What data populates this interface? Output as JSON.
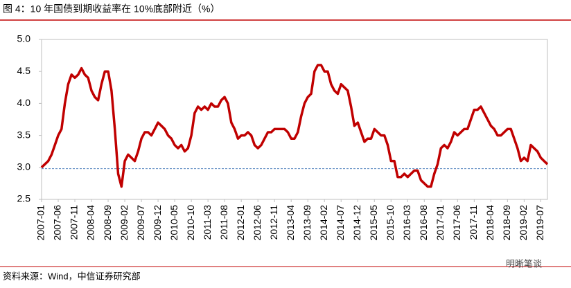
{
  "chart_data": {
    "type": "line",
    "title": "图 4：10 年国债到期收益率在 10%底部附近（%）",
    "source": "资料来源：Wind，中信证券研究部",
    "watermark": "明晰笔谈",
    "categories": [
      "2007-01",
      null,
      null,
      null,
      null,
      "2007-06",
      null,
      null,
      null,
      null,
      "2007-11",
      null,
      null,
      null,
      null,
      "2008-04",
      null,
      null,
      null,
      null,
      "2008-09",
      null,
      null,
      null,
      null,
      "2009-02",
      null,
      null,
      null,
      null,
      "2009-07",
      null,
      null,
      null,
      null,
      "2009-12",
      null,
      null,
      null,
      null,
      "2010-05",
      null,
      null,
      null,
      null,
      "2010-10",
      null,
      null,
      null,
      null,
      "2011-03",
      null,
      null,
      null,
      null,
      "2011-08",
      null,
      null,
      null,
      null,
      "2012-01",
      null,
      null,
      null,
      null,
      "2012-06",
      null,
      null,
      null,
      null,
      "2012-11",
      null,
      null,
      null,
      null,
      "2013-04",
      null,
      null,
      null,
      null,
      "2013-09",
      null,
      null,
      null,
      null,
      "2014-02",
      null,
      null,
      null,
      null,
      "2014-07",
      null,
      null,
      null,
      null,
      "2014-12",
      null,
      null,
      null,
      null,
      "2015-05",
      null,
      null,
      null,
      null,
      "2015-10",
      null,
      null,
      null,
      null,
      "2016-03",
      null,
      null,
      null,
      null,
      "2016-08",
      null,
      null,
      null,
      null,
      "2017-01",
      null,
      null,
      null,
      null,
      "2017-06",
      null,
      null,
      null,
      null,
      "2017-11",
      null,
      null,
      null,
      null,
      "2018-04",
      null,
      null,
      null,
      null,
      "2018-09",
      null,
      null,
      null,
      null,
      "2019-02",
      null,
      null,
      null,
      null,
      "2019-07",
      null,
      null
    ],
    "values": [
      3.0,
      3.05,
      3.1,
      3.2,
      3.35,
      3.5,
      3.6,
      4.0,
      4.3,
      4.45,
      4.4,
      4.45,
      4.55,
      4.45,
      4.4,
      4.2,
      4.1,
      4.05,
      4.3,
      4.5,
      4.5,
      4.2,
      3.6,
      2.9,
      2.7,
      3.1,
      3.2,
      3.15,
      3.1,
      3.25,
      3.45,
      3.55,
      3.55,
      3.5,
      3.6,
      3.7,
      3.65,
      3.6,
      3.5,
      3.45,
      3.35,
      3.3,
      3.35,
      3.25,
      3.3,
      3.5,
      3.85,
      3.95,
      3.9,
      3.95,
      3.9,
      4.0,
      3.95,
      3.95,
      4.05,
      4.1,
      4.0,
      3.7,
      3.6,
      3.45,
      3.5,
      3.5,
      3.55,
      3.5,
      3.35,
      3.3,
      3.35,
      3.45,
      3.55,
      3.55,
      3.6,
      3.6,
      3.6,
      3.6,
      3.55,
      3.45,
      3.45,
      3.55,
      3.8,
      4.0,
      4.1,
      4.15,
      4.5,
      4.6,
      4.6,
      4.5,
      4.5,
      4.3,
      4.2,
      4.15,
      4.3,
      4.25,
      4.2,
      3.95,
      3.65,
      3.7,
      3.55,
      3.4,
      3.45,
      3.45,
      3.6,
      3.55,
      3.5,
      3.5,
      3.35,
      3.1,
      3.1,
      2.85,
      2.85,
      2.9,
      2.85,
      2.9,
      2.95,
      2.95,
      2.8,
      2.75,
      2.7,
      2.7,
      2.9,
      3.05,
      3.3,
      3.35,
      3.3,
      3.4,
      3.55,
      3.5,
      3.55,
      3.6,
      3.6,
      3.75,
      3.9,
      3.9,
      3.95,
      3.85,
      3.75,
      3.65,
      3.6,
      3.5,
      3.5,
      3.55,
      3.6,
      3.6,
      3.45,
      3.3,
      3.1,
      3.15,
      3.1,
      3.35,
      3.3,
      3.25,
      3.15,
      3.1,
      3.05
    ],
    "color": "#c00000",
    "reference_line": 2.98,
    "reference_color": "#4f81bd",
    "ylim": [
      2.5,
      5.0
    ],
    "yticks": [
      2.5,
      {
        "value": 3.0,
        "label": "3.0"
      },
      3.5,
      {
        "value": 4.0,
        "label": "4.0"
      },
      4.5,
      {
        "value": 5.0,
        "label": "5.0"
      }
    ]
  }
}
